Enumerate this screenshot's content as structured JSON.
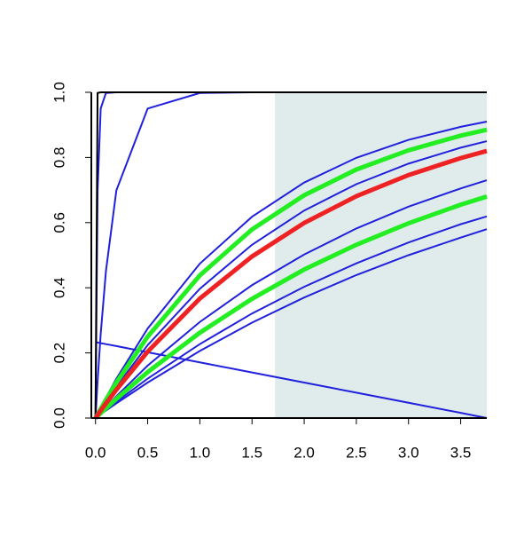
{
  "chart_data": {
    "type": "line",
    "x": [
      0,
      0.02,
      0.05,
      0.1,
      0.2,
      0.5,
      1,
      1.5,
      2,
      2.5,
      3,
      3.5,
      3.75
    ],
    "xlim": [
      -0.04,
      3.75
    ],
    "ylim": [
      0,
      1
    ],
    "xticks": [
      {
        "value": 0,
        "label": "0.0"
      },
      0.5,
      {
        "value": 1,
        "label": "1.0"
      },
      1.5,
      {
        "value": 2,
        "label": "2.0"
      },
      2.5,
      {
        "value": 3,
        "label": "3.0"
      },
      3.5
    ],
    "yticks": [
      {
        "value": 0,
        "label": "0.0"
      },
      0.2,
      0.4,
      0.6,
      0.8,
      {
        "value": 1,
        "label": "1.0"
      }
    ],
    "shaded_xrange": [
      1.72,
      3.75
    ],
    "shade_color": "#e0ecec",
    "series": [
      {
        "color": "#2020dd",
        "values": [
          0,
          0.013,
          0.032,
          0.062,
          0.121,
          0.275,
          0.474,
          0.618,
          0.723,
          0.799,
          0.854,
          0.894,
          0.91
        ]
      },
      {
        "color": "#2020dd",
        "values": [
          0,
          0.01,
          0.025,
          0.049,
          0.096,
          0.224,
          0.397,
          0.532,
          0.637,
          0.718,
          0.781,
          0.83,
          0.85
        ]
      },
      {
        "color": "#2020dd",
        "values": [
          0,
          0.007,
          0.017,
          0.034,
          0.067,
          0.161,
          0.295,
          0.408,
          0.502,
          0.582,
          0.649,
          0.705,
          0.73
        ]
      },
      {
        "color": "#2020dd",
        "values": [
          0,
          0.005,
          0.013,
          0.026,
          0.05,
          0.121,
          0.227,
          0.321,
          0.403,
          0.475,
          0.539,
          0.595,
          0.619
        ]
      },
      {
        "color": "#2020dd",
        "values": [
          0,
          0.005,
          0.012,
          0.023,
          0.045,
          0.109,
          0.206,
          0.293,
          0.37,
          0.439,
          0.5,
          0.554,
          0.58
        ]
      },
      {
        "color": "#2020dd",
        "values": [
          0,
          0.113,
          0.259,
          0.451,
          0.699,
          0.95,
          0.998,
          1,
          1,
          1,
          1,
          1,
          1
        ]
      },
      {
        "color": "#2020dd",
        "values": [
          0,
          0.699,
          0.95,
          0.998,
          1,
          1,
          1,
          1,
          1,
          1,
          1,
          1,
          1
        ]
      },
      {
        "color": "#2020dd",
        "values": [
          0.233,
          0.232,
          0.23,
          0.227,
          0.221,
          0.202,
          0.171,
          0.14,
          0.109,
          0.078,
          0.047,
          0.016,
          0
        ]
      },
      {
        "color": "#000000",
        "values": [
          0,
          0.998,
          1,
          1,
          1,
          1,
          1,
          1,
          1,
          1,
          1,
          1,
          1
        ]
      },
      {
        "color": "#22ee22",
        "values": [
          0,
          0.011,
          0.028,
          0.056,
          0.109,
          0.25,
          0.438,
          0.579,
          0.684,
          0.763,
          0.822,
          0.867,
          0.885
        ]
      },
      {
        "color": "#22ee22",
        "values": [
          0,
          0.006,
          0.015,
          0.03,
          0.059,
          0.141,
          0.262,
          0.366,
          0.456,
          0.532,
          0.598,
          0.655,
          0.68
        ]
      },
      {
        "color": "#ee2222",
        "values": [
          0,
          0.009,
          0.023,
          0.045,
          0.087,
          0.204,
          0.367,
          0.496,
          0.599,
          0.681,
          0.746,
          0.798,
          0.82
        ]
      }
    ]
  }
}
